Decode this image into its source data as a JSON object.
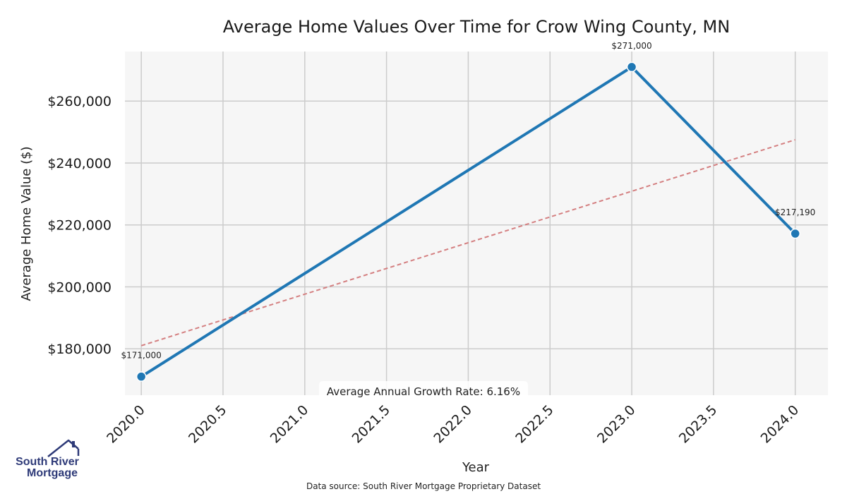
{
  "chart_data": {
    "type": "line",
    "title": "Average Home Values Over Time for Crow Wing County, MN",
    "xlabel": "Year",
    "ylabel": "Average Home Value ($)",
    "xlim": [
      2019.9,
      2024.2
    ],
    "ylim": [
      165000,
      276000
    ],
    "xticks": [
      2020.0,
      2020.5,
      2021.0,
      2021.5,
      2022.0,
      2022.5,
      2023.0,
      2023.5,
      2024.0
    ],
    "xtick_labels": [
      "2020.0",
      "2020.5",
      "2021.0",
      "2021.5",
      "2022.0",
      "2022.5",
      "2023.0",
      "2023.5",
      "2024.0"
    ],
    "yticks": [
      180000,
      200000,
      220000,
      240000,
      260000
    ],
    "ytick_labels": [
      "$180,000",
      "$200,000",
      "$220,000",
      "$240,000",
      "$260,000"
    ],
    "grid": true,
    "series": [
      {
        "name": "Average Home Value",
        "color": "#1f77b4",
        "x": [
          2020,
          2023,
          2024
        ],
        "values": [
          171000,
          271000,
          217190
        ],
        "labels": [
          "$171,000",
          "$271,000",
          "$217,190"
        ]
      }
    ],
    "trendline": {
      "color": "#d47f80",
      "x": [
        2020,
        2024
      ],
      "values": [
        181000,
        247500
      ]
    },
    "annotation": "Average Annual Growth Rate: 6.16%",
    "source": "Data source: South River Mortgage Proprietary Dataset"
  },
  "logo": {
    "line1": "South River",
    "line2": "Mortgage",
    "icon": "house-icon",
    "color": "#2e3a78"
  }
}
